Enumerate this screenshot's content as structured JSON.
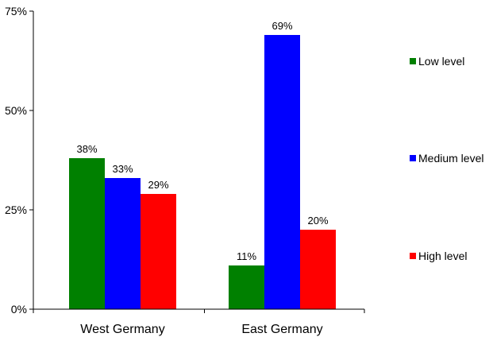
{
  "chart_data": {
    "type": "bar",
    "categories": [
      "West Germany",
      "East Germany"
    ],
    "series": [
      {
        "name": "Low level",
        "color": "#008000",
        "values": [
          38,
          11
        ],
        "labels": [
          "38%",
          "11%"
        ]
      },
      {
        "name": "Medium level",
        "color": "#0000FF",
        "values": [
          33,
          69
        ],
        "labels": [
          "33%",
          "69%"
        ]
      },
      {
        "name": "High level",
        "color": "#FF0000",
        "values": [
          29,
          20
        ],
        "labels": [
          "29%",
          "20%"
        ]
      }
    ],
    "ylim": [
      0,
      75
    ],
    "yticks": [
      {
        "value": 0,
        "label": "0%"
      },
      {
        "value": 25,
        "label": "25%"
      },
      {
        "value": 50,
        "label": "50%"
      },
      {
        "value": 75,
        "label": "75%"
      }
    ],
    "grid": false,
    "legend_position": "right"
  }
}
